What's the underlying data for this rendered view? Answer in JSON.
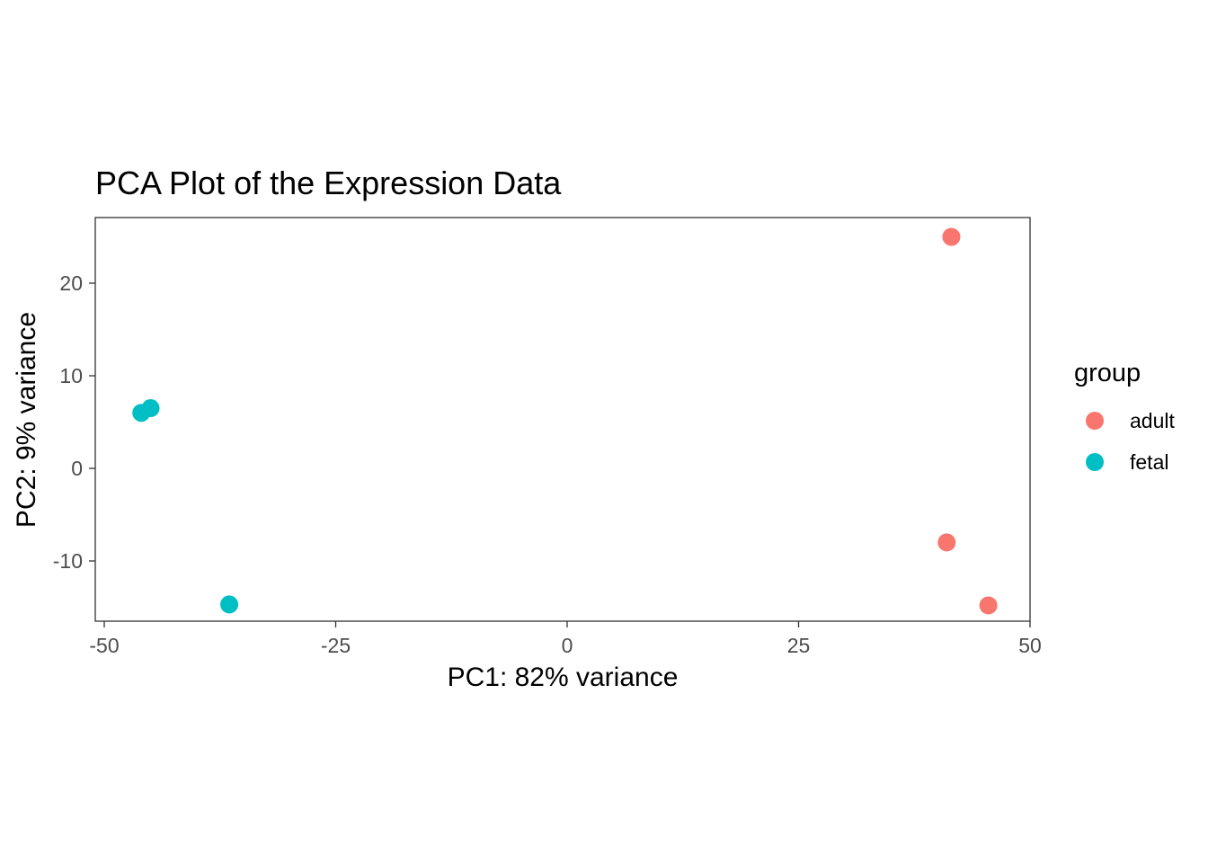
{
  "chart_data": {
    "type": "scatter",
    "title": "PCA Plot of the Expression Data",
    "xlabel": "PC1: 82% variance",
    "ylabel": "PC2: 9% variance",
    "xlim": [
      -50,
      50
    ],
    "ylim": [
      -17,
      27
    ],
    "x_ticks": [
      -50,
      -25,
      0,
      25,
      50
    ],
    "x_tick_labels": [
      "-50",
      "-25",
      "0",
      "25",
      "50"
    ],
    "y_ticks": [
      -10,
      0,
      10,
      20
    ],
    "y_tick_labels": [
      "-10",
      "0",
      "10",
      "20"
    ],
    "grid": false,
    "legend": {
      "title": "group",
      "position": "right",
      "entries": [
        {
          "label": "adult",
          "color": "#F8766D"
        },
        {
          "label": "fetal",
          "color": "#00BFC4"
        }
      ]
    },
    "series": [
      {
        "name": "adult",
        "color": "#F8766D",
        "points": [
          {
            "x": 41.5,
            "y": 25.0
          },
          {
            "x": 41.0,
            "y": -8.0
          },
          {
            "x": 45.5,
            "y": -14.8
          }
        ]
      },
      {
        "name": "fetal",
        "color": "#00BFC4",
        "points": [
          {
            "x": -46.0,
            "y": 6.0
          },
          {
            "x": -45.0,
            "y": 6.5
          },
          {
            "x": -36.5,
            "y": -14.7
          }
        ]
      }
    ]
  }
}
